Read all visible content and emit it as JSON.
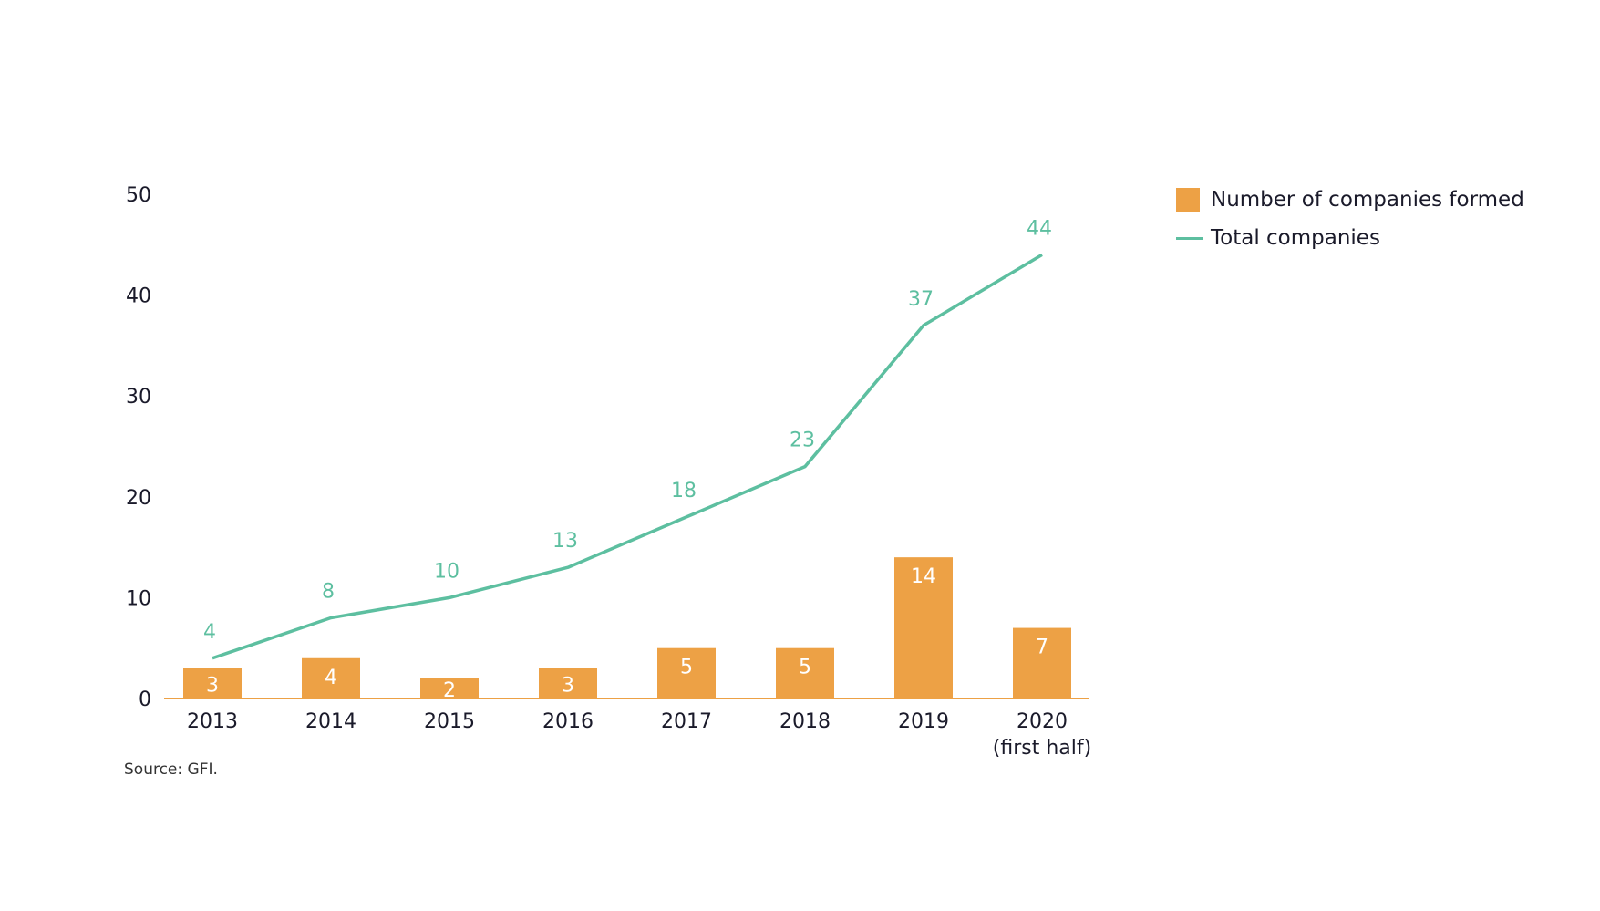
{
  "chart_data": {
    "type": "bar+line",
    "categories": [
      "2013",
      "2014",
      "2015",
      "2016",
      "2017",
      "2018",
      "2019",
      "2020\n(first half)"
    ],
    "category_lines": [
      [
        "2013"
      ],
      [
        "2014"
      ],
      [
        "2015"
      ],
      [
        "2016"
      ],
      [
        "2017"
      ],
      [
        "2018"
      ],
      [
        "2019"
      ],
      [
        "2020",
        "(first half)"
      ]
    ],
    "series": [
      {
        "name": "Number of companies formed",
        "type": "bar",
        "color": "#EDA145",
        "values": [
          3,
          4,
          2,
          3,
          5,
          5,
          14,
          7
        ]
      },
      {
        "name": "Total companies",
        "type": "line",
        "color": "#5DBFA0",
        "values": [
          4,
          8,
          10,
          13,
          18,
          23,
          37,
          44
        ]
      }
    ],
    "yticks": [
      0,
      10,
      20,
      30,
      40,
      50
    ],
    "ylim": [
      0,
      50
    ],
    "grid": false,
    "legend": "top-right",
    "source": "Source: GFI."
  }
}
